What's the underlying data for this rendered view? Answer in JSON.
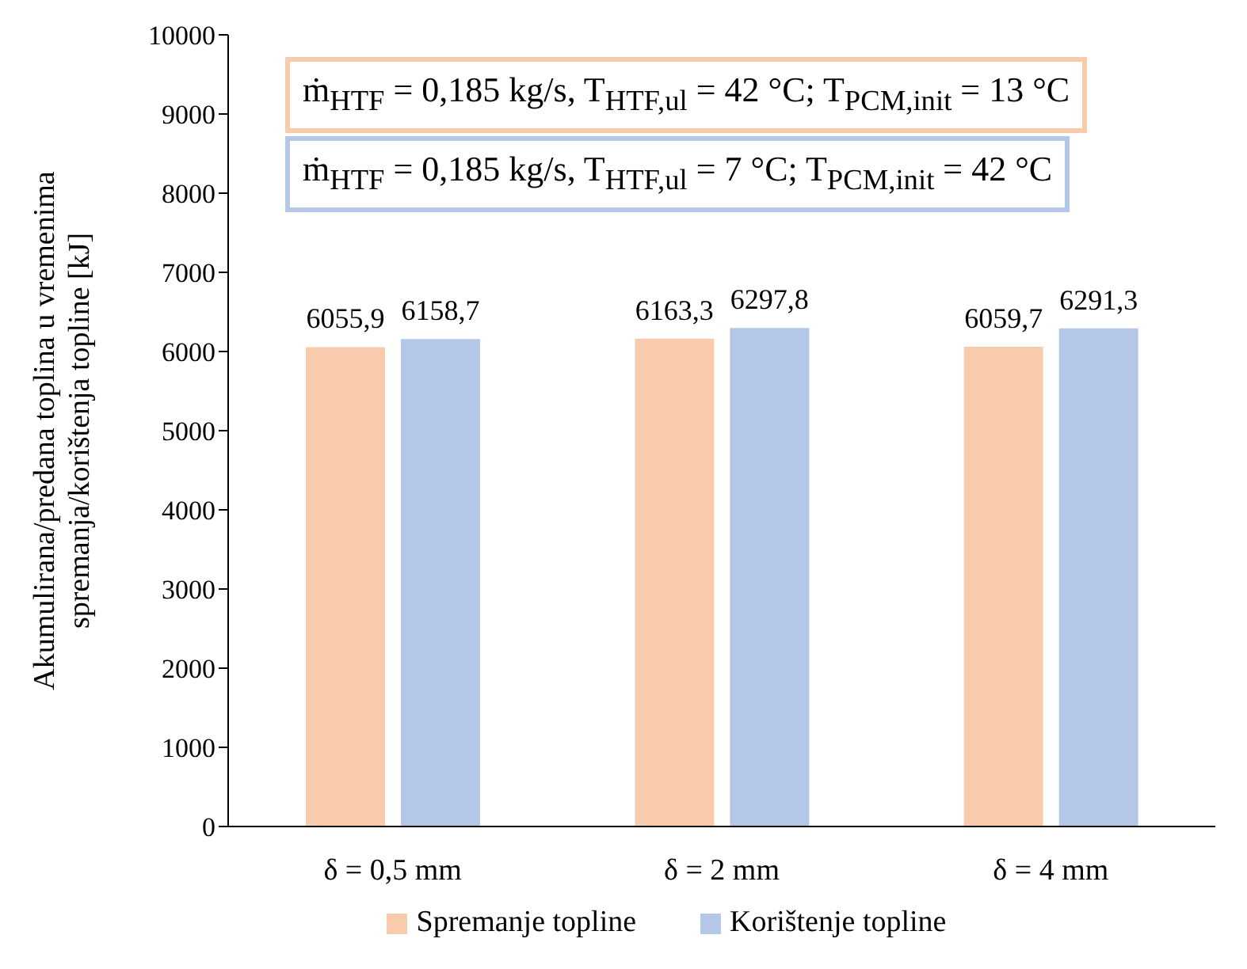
{
  "chart_data": {
    "type": "bar",
    "ylabel": "Akumulirana/predana toplina u vremenima spremanja/korištenja topline [kJ]",
    "categories": [
      "δ = 0,5 mm",
      "δ = 2 mm",
      "δ = 4 mm"
    ],
    "series": [
      {
        "name": "Spremanje topline",
        "color": "#f8cbad",
        "values": [
          6055.9,
          6163.3,
          6059.7
        ],
        "value_labels": [
          "6055,9",
          "6163,3",
          "6059,7"
        ]
      },
      {
        "name": "Korištenje topline",
        "color": "#b4c7e7",
        "values": [
          6158.7,
          6297.8,
          6291.3
        ],
        "value_labels": [
          "6158,7",
          "6297,8",
          "6291,3"
        ]
      }
    ],
    "annotations": [
      "ṁ$_{HTF}$ = 0,185 kg/s, T$_{HTF,ul}$ = 42 °C; T$_{PCM,init}$ = 13 °C",
      "ṁ$_{HTF}$ = 0,185 kg/s, T$_{HTF,ul}$ = 7 °C; T$_{PCM,init}$ = 42 °C"
    ],
    "ylim": [
      0,
      10000
    ],
    "yticks": [
      0,
      1000,
      2000,
      3000,
      4000,
      5000,
      6000,
      7000,
      8000,
      9000,
      10000
    ],
    "grid": false,
    "legend": "bottom"
  }
}
